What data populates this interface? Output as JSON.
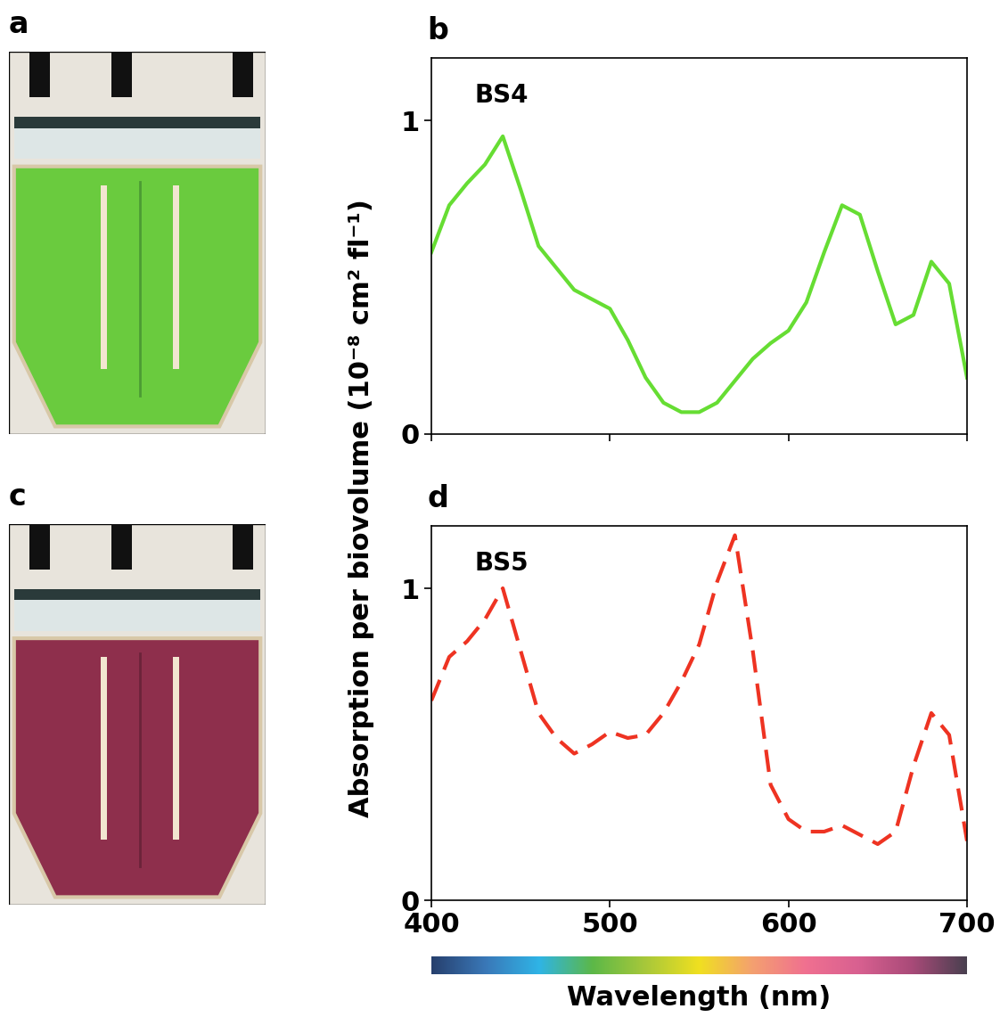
{
  "ylabel": "Absorption per biovolume (10⁻⁸ cm² fl⁻¹)",
  "xlabel": "Wavelength (nm)",
  "images": [
    {
      "title": "a"
    },
    {
      "title": "c"
    }
  ],
  "chart_data": [
    {
      "type": "line",
      "title": "b",
      "annotations": [
        "BS4"
      ],
      "x": [
        400,
        410,
        420,
        430,
        440,
        450,
        460,
        470,
        480,
        490,
        500,
        510,
        520,
        530,
        540,
        550,
        560,
        570,
        580,
        590,
        600,
        610,
        620,
        630,
        640,
        650,
        660,
        670,
        680,
        690,
        700
      ],
      "series": [
        {
          "name": "BS4",
          "color": "#66dd33",
          "line_style": "solid",
          "values": [
            0.58,
            0.73,
            0.8,
            0.86,
            0.95,
            0.78,
            0.6,
            0.53,
            0.46,
            0.43,
            0.4,
            0.3,
            0.18,
            0.1,
            0.07,
            0.07,
            0.1,
            0.17,
            0.24,
            0.29,
            0.33,
            0.42,
            0.58,
            0.73,
            0.7,
            0.52,
            0.35,
            0.38,
            0.55,
            0.48,
            0.18
          ]
        }
      ],
      "xlim": [
        400,
        700
      ],
      "ylim": [
        0,
        1.2
      ],
      "xticks": [
        400,
        500,
        600,
        700
      ],
      "yticks": [
        0,
        1
      ],
      "tick_labels": "y"
    },
    {
      "type": "line",
      "title": "d",
      "annotations": [
        "BS5"
      ],
      "x": [
        400,
        410,
        420,
        430,
        440,
        450,
        460,
        470,
        480,
        490,
        500,
        510,
        520,
        530,
        540,
        550,
        560,
        570,
        580,
        590,
        600,
        610,
        620,
        630,
        640,
        650,
        660,
        670,
        680,
        690,
        700
      ],
      "series": [
        {
          "name": "BS5",
          "color": "#ee3322",
          "line_style": "dashed",
          "values": [
            0.64,
            0.78,
            0.83,
            0.9,
            1.0,
            0.8,
            0.6,
            0.52,
            0.47,
            0.5,
            0.54,
            0.52,
            0.53,
            0.6,
            0.7,
            0.82,
            1.02,
            1.17,
            0.8,
            0.37,
            0.26,
            0.22,
            0.22,
            0.24,
            0.21,
            0.18,
            0.22,
            0.43,
            0.6,
            0.53,
            0.19
          ]
        }
      ],
      "xlim": [
        400,
        700
      ],
      "ylim": [
        0,
        1.2
      ],
      "xticks": [
        400,
        500,
        600,
        700
      ],
      "yticks": [
        0,
        1
      ]
    }
  ]
}
